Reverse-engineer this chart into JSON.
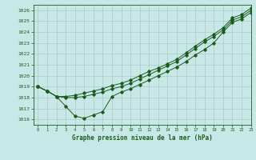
{
  "title": "Graphe pression niveau de la mer (hPa)",
  "bg_color": "#c8e8e8",
  "line_color": "#1a5c1a",
  "grid_color": "#b0c8c8",
  "xlim": [
    -0.5,
    23
  ],
  "ylim": [
    1015.5,
    1026.5
  ],
  "yticks": [
    1016,
    1017,
    1018,
    1019,
    1020,
    1021,
    1022,
    1023,
    1024,
    1025,
    1026
  ],
  "xticks": [
    0,
    1,
    2,
    3,
    4,
    5,
    6,
    7,
    8,
    9,
    10,
    11,
    12,
    13,
    14,
    15,
    16,
    17,
    18,
    19,
    20,
    21,
    22,
    23
  ],
  "series_bottom": {
    "x": [
      0,
      1,
      2,
      3,
      4,
      5,
      6,
      7,
      8,
      9,
      10,
      11,
      12,
      13,
      14,
      15,
      16,
      17,
      18,
      19,
      20,
      21,
      22,
      23
    ],
    "y": [
      1019.0,
      1018.6,
      1018.1,
      1017.2,
      1016.3,
      1016.1,
      1016.4,
      1016.7,
      1018.1,
      1018.5,
      1018.8,
      1019.2,
      1019.6,
      1020.0,
      1020.4,
      1020.8,
      1021.3,
      1021.9,
      1022.4,
      1023.0,
      1024.0,
      1024.9,
      1025.2,
      1025.8
    ]
  },
  "series_mid": {
    "x": [
      0,
      1,
      2,
      3,
      4,
      5,
      6,
      7,
      8,
      9,
      10,
      11,
      12,
      13,
      14,
      15,
      16,
      17,
      18,
      19,
      20,
      21,
      22,
      23
    ],
    "y": [
      1019.0,
      1018.6,
      1018.1,
      1018.0,
      1018.0,
      1018.1,
      1018.3,
      1018.5,
      1018.8,
      1019.0,
      1019.3,
      1019.7,
      1020.1,
      1020.5,
      1020.9,
      1021.3,
      1021.9,
      1022.5,
      1023.1,
      1023.6,
      1024.2,
      1025.1,
      1025.4,
      1026.0
    ]
  },
  "series_top": {
    "x": [
      0,
      1,
      2,
      3,
      4,
      5,
      6,
      7,
      8,
      9,
      10,
      11,
      12,
      13,
      14,
      15,
      16,
      17,
      18,
      19,
      20,
      21,
      22,
      23
    ],
    "y": [
      1019.0,
      1018.6,
      1018.1,
      1018.1,
      1018.2,
      1018.4,
      1018.6,
      1018.8,
      1019.1,
      1019.3,
      1019.6,
      1020.0,
      1020.4,
      1020.7,
      1021.1,
      1021.5,
      1022.1,
      1022.7,
      1023.3,
      1023.8,
      1024.4,
      1025.3,
      1025.6,
      1026.2
    ]
  }
}
